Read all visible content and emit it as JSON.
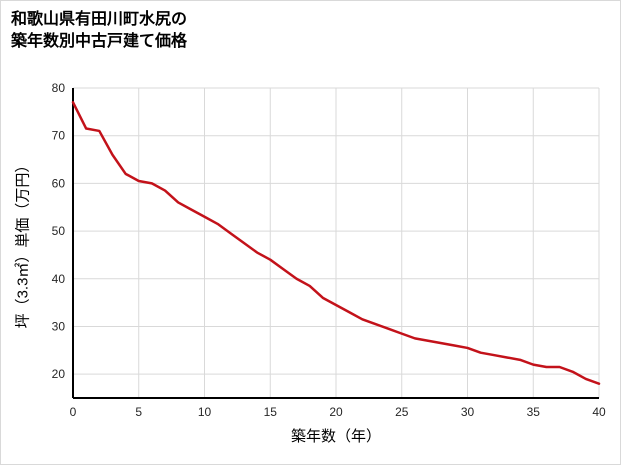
{
  "page": {
    "background": "#ffffff",
    "border_color": "#d9d9d9"
  },
  "chart": {
    "title": "和歌山県有田川町水尻の\n築年数別中古戸建て価格",
    "xlabel": "築年数（年）",
    "ylabel": "坪（3.3㎡）単価（万円）"
  },
  "chart_data": {
    "type": "line",
    "title": "和歌山県有田川町水尻の築年数別中古戸建て価格",
    "xlabel": "築年数（年）",
    "ylabel": "坪（3.3㎡）単価（万円）",
    "x": [
      0,
      1,
      2,
      3,
      4,
      5,
      6,
      7,
      8,
      9,
      10,
      11,
      12,
      13,
      14,
      15,
      16,
      17,
      18,
      19,
      20,
      21,
      22,
      23,
      24,
      25,
      26,
      27,
      28,
      29,
      30,
      31,
      32,
      33,
      34,
      35,
      36,
      37,
      38,
      39,
      40
    ],
    "values": [
      77,
      71.5,
      71,
      66,
      62,
      60.5,
      60,
      58.5,
      56,
      54.5,
      53,
      51.5,
      49.5,
      47.5,
      45.5,
      44,
      42,
      40,
      38.5,
      36,
      34.5,
      33,
      31.5,
      30.5,
      29.5,
      28.5,
      27.5,
      27,
      26.5,
      26,
      25.5,
      24.5,
      24,
      23.5,
      23,
      22,
      21.5,
      21.5,
      20.5,
      19,
      18
    ],
    "xlim": [
      0,
      40
    ],
    "ylim": [
      15,
      80
    ],
    "x_ticks": [
      0,
      5,
      10,
      15,
      20,
      25,
      30,
      35,
      40
    ],
    "y_ticks": [
      20,
      30,
      40,
      50,
      60,
      70,
      80
    ],
    "grid": true,
    "legend": "none",
    "line_color": "#c3121a",
    "grid_color": "#d9d9d9",
    "axis_color": "#000000"
  }
}
